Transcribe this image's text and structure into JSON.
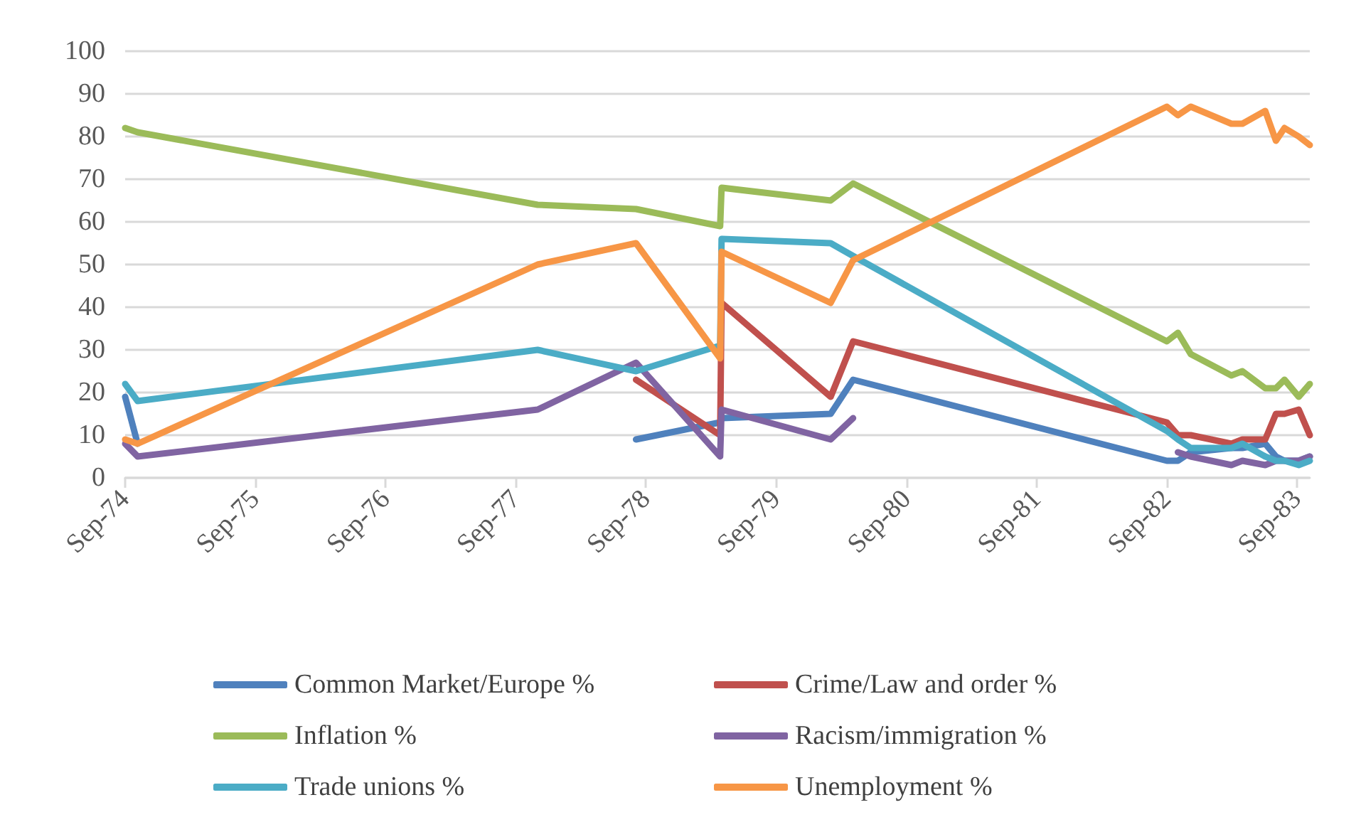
{
  "chart_data": {
    "type": "line",
    "x": [
      "1974-09-01",
      "1974-10-06",
      "1977-11-01",
      "1978-08-04",
      "1979-03-28",
      "1979-04-01",
      "1980-02-01",
      "1980-04-04",
      "1982-09-01",
      "1982-10-02",
      "1982-11-07",
      "1983-03-01",
      "1983-04-01",
      "1983-06-04",
      "1983-07-04",
      "1983-07-28",
      "1983-09-06",
      "1983-10-07"
    ],
    "series": [
      {
        "name": "Common Market/Europe %",
        "color": "#4f81bd",
        "values": [
          19,
          8,
          null,
          9,
          13,
          14,
          15,
          23,
          4,
          4,
          6,
          7,
          7,
          8,
          5,
          4,
          4,
          5
        ]
      },
      {
        "name": "Crime/Law and order %",
        "color": "#c0504d",
        "values": [
          null,
          null,
          null,
          23,
          10,
          41,
          19,
          32,
          13,
          10,
          10,
          8,
          9,
          9,
          15,
          15,
          16,
          10
        ]
      },
      {
        "name": "Inflation %",
        "color": "#9bbb59",
        "values": [
          82,
          81,
          64,
          63,
          59,
          68,
          65,
          69,
          32,
          34,
          29,
          24,
          25,
          21,
          21,
          23,
          19,
          22
        ]
      },
      {
        "name": "Racism/immigration %",
        "color": "#8064a2",
        "values": [
          8,
          5,
          16,
          27,
          5,
          16,
          9,
          14,
          null,
          6,
          5,
          3,
          4,
          3,
          4,
          4,
          4,
          5
        ]
      },
      {
        "name": "Trade unions %",
        "color": "#4bacc6",
        "values": [
          22,
          18,
          30,
          25,
          31,
          56,
          55,
          52,
          11,
          9,
          7,
          7,
          8,
          5,
          4,
          4,
          3,
          4
        ]
      },
      {
        "name": "Unemployment %",
        "color": "#f79646",
        "values": [
          9,
          8,
          50,
          55,
          28,
          53,
          41,
          51,
          87,
          85,
          87,
          83,
          83,
          86,
          79,
          82,
          80,
          78
        ]
      }
    ],
    "xlim": [
      "1974-09-01",
      "1983-10-07"
    ],
    "xticks": [
      {
        "value": "1974-09-01",
        "label": "Sep-74"
      },
      {
        "value": "1975-09-01",
        "label": "Sep-75"
      },
      {
        "value": "1976-09-01",
        "label": "Sep-76"
      },
      {
        "value": "1977-09-01",
        "label": "Sep-77"
      },
      {
        "value": "1978-09-01",
        "label": "Sep-78"
      },
      {
        "value": "1979-09-01",
        "label": "Sep-79"
      },
      {
        "value": "1980-09-01",
        "label": "Sep-80"
      },
      {
        "value": "1981-09-01",
        "label": "Sep-81"
      },
      {
        "value": "1982-09-01",
        "label": "Sep-82"
      },
      {
        "value": "1983-09-01",
        "label": "Sep-83"
      }
    ],
    "ylim": [
      0,
      100
    ],
    "yticks": [
      0,
      10,
      20,
      30,
      40,
      50,
      60,
      70,
      80,
      90,
      100
    ],
    "grid": "y",
    "legend": "bottom",
    "marker": "none",
    "line_style": "solid"
  }
}
